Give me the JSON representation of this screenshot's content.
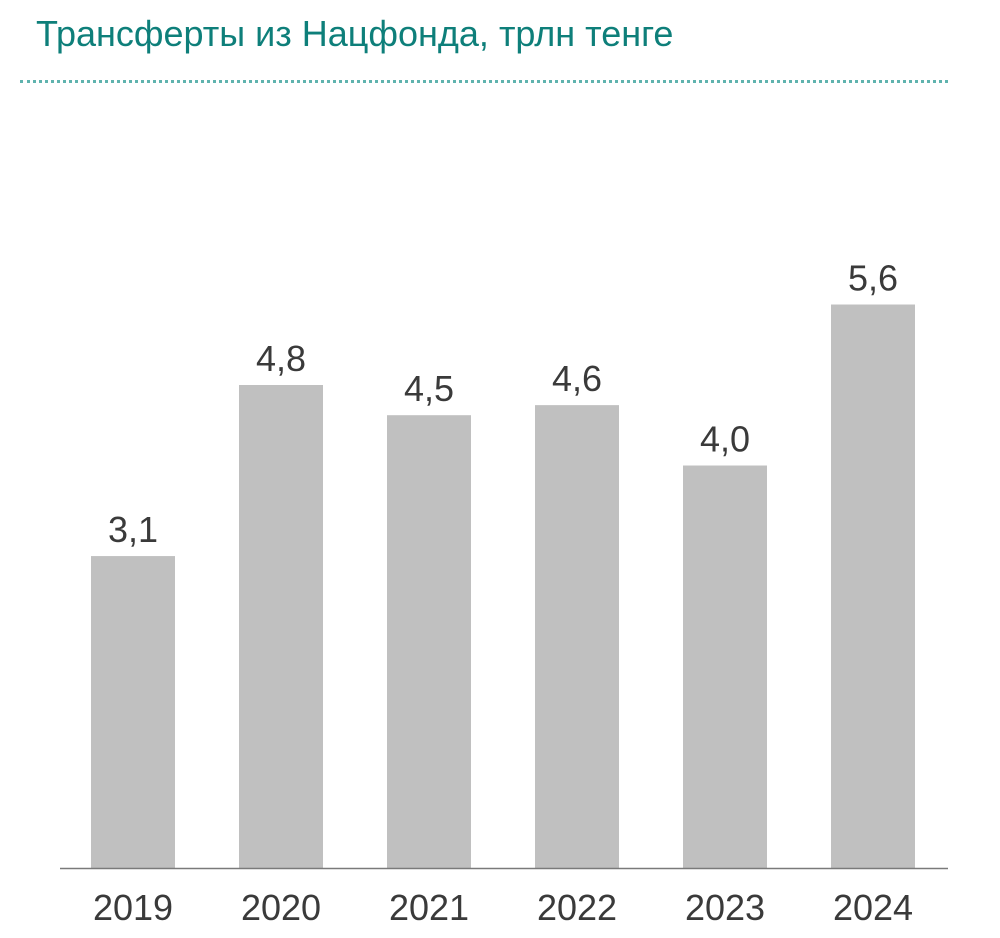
{
  "chart_data": {
    "type": "bar",
    "title": "Трансферты из Нацфонда, трлн тенге",
    "categories": [
      "2019",
      "2020",
      "2021",
      "2022",
      "2023",
      "2024"
    ],
    "values": [
      3.1,
      4.8,
      4.5,
      4.6,
      4.0,
      5.6
    ],
    "value_labels": [
      "3,1",
      "4,8",
      "4,5",
      "4,6",
      "4,0",
      "5,6"
    ],
    "xlabel": "",
    "ylabel": "",
    "ylim": [
      0,
      6.4
    ],
    "grid": false,
    "legend": "none",
    "bar_color": "#c0c0c0",
    "title_color": "#0e7f7a"
  }
}
